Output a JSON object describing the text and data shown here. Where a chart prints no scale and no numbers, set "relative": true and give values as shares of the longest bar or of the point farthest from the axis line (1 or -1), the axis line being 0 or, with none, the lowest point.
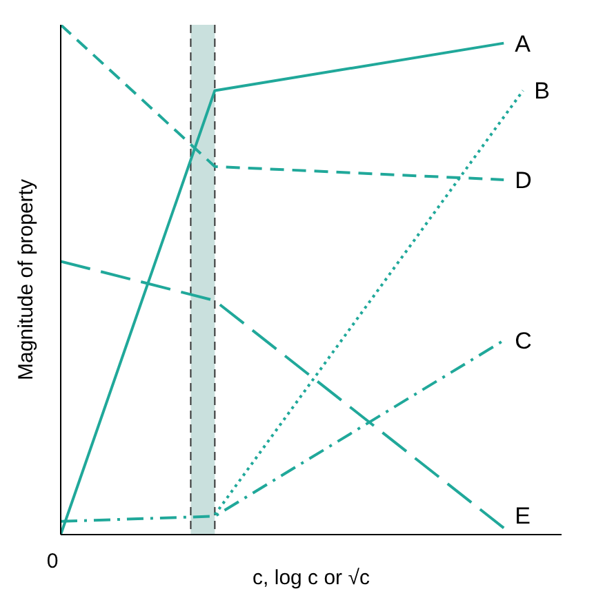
{
  "chart_data": {
    "type": "line",
    "relative": true,
    "xlabel": "c, log c or √c",
    "ylabel": "Magnitude of property",
    "annotations": [
      "0"
    ],
    "marker": "none",
    "categories": [
      null,
      null,
      null,
      null,
      null,
      null,
      null,
      null,
      null,
      null,
      null,
      null,
      null,
      null,
      null,
      null,
      null,
      null,
      null,
      null,
      null,
      null,
      null,
      null,
      null,
      null,
      null
    ],
    "series": [
      {
        "name": "A",
        "color": "#20a89a",
        "line_style": "solid",
        "values": [
          0,
          null,
          null,
          null,
          null,
          null,
          null,
          null,
          0.871,
          null,
          null,
          null,
          null,
          null,
          null,
          null,
          null,
          null,
          null,
          null,
          null,
          null,
          null,
          0.964,
          null,
          null,
          null
        ]
      },
      {
        "name": "B",
        "color": "#20a89a",
        "line_style": "dotted",
        "values": [
          null,
          null,
          null,
          null,
          null,
          null,
          null,
          null,
          0.039,
          null,
          null,
          null,
          null,
          null,
          null,
          null,
          null,
          null,
          null,
          null,
          null,
          null,
          null,
          null,
          0.871,
          null,
          null
        ]
      },
      {
        "name": "C",
        "color": "#20a89a",
        "line_style": "dashdot",
        "values": [
          0.026,
          null,
          null,
          null,
          null,
          null,
          null,
          null,
          0.036,
          null,
          null,
          null,
          null,
          null,
          null,
          null,
          null,
          null,
          null,
          null,
          null,
          null,
          null,
          0.381,
          null,
          null,
          null
        ]
      },
      {
        "name": "D",
        "color": "#20a89a",
        "line_style": "dashed",
        "values": [
          1,
          null,
          null,
          null,
          null,
          null,
          null,
          null,
          0.722,
          null,
          null,
          null,
          null,
          null,
          null,
          null,
          null,
          null,
          null,
          null,
          null,
          null,
          null,
          0.696,
          null,
          null,
          null
        ]
      },
      {
        "name": "E",
        "color": "#20a89a",
        "line_style": "longdash",
        "values": [
          0.536,
          null,
          null,
          null,
          null,
          null,
          null,
          null,
          0.459,
          null,
          null,
          null,
          null,
          null,
          null,
          null,
          null,
          null,
          null,
          null,
          null,
          null,
          null,
          0.013,
          null,
          null,
          null
        ]
      }
    ]
  }
}
